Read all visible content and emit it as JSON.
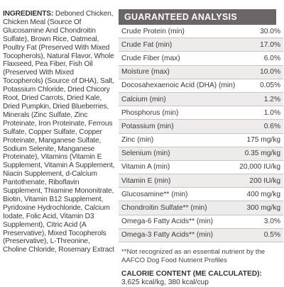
{
  "ingredients": {
    "title": "INGREDIENTS:",
    "text": "Deboned Chicken, Chicken Meal (Source Of Glucosamine And Chondroitin Sulfate), Brown Rice, Oatmeal, Poultry Fat (Preserved With Mixed Tocopherols), Natural Flavor, Whole Flaxseed, Pea Fiber, Fish Oil (Preserved With Mixed Tocopherols) (Source of DHA), Salt, Potassium Chloride, Dried Chicory Root, Dried Carrots, Dried Kale, Dried Pumpkin, Dried Blueberries, Minerals (Zinc Sulfate, Zinc Proteinate, Iron Proteinate, Ferrous Sulfate, Copper Sulfate, Copper Proteinate, Manganese Sulfate, Sodium Selenite, Manganese Proteinate), Vitamins (Vitamin E Supplement, Vitamin A Supplement, Niacin Supplement, d-Calcium Pantothenate, Riboflavin Supplement, Thiamine Mononitrate, Biotin, Vitamin B12 Supplement, Pyridoxine Hydrochloride, Calcium Iodate, Folic Acid, Vitamin D3 Supplement), Citric Acid (A Preservative), Mixed Tocopherols (Preservative), L-Threonine, Choline Chloride, Rosemary Extract"
  },
  "analysis": {
    "title": "GUARANTEED ANALYSIS",
    "rows": [
      {
        "label": "Crude Protein (min)",
        "value": "30.0%"
      },
      {
        "label": "Crude Fat (min)",
        "value": "17.0%"
      },
      {
        "label": "Crude Fiber (max)",
        "value": "6.0%"
      },
      {
        "label": "Moisture (max)",
        "value": "10.0%"
      },
      {
        "label": "Docosahexaenoic Acid (DHA) (min)",
        "value": "0.05%"
      },
      {
        "label": "Calcium (min)",
        "value": "1.2%"
      },
      {
        "label": "Phosphorus (min)",
        "value": "1.0%"
      },
      {
        "label": "Potassium (min)",
        "value": "0.6%"
      },
      {
        "label": "Zinc (min)",
        "value": "175 mg/kg"
      },
      {
        "label": "Selenium (min)",
        "value": "0.35 mg/kg"
      },
      {
        "label": "Vitamin A (min)",
        "value": "20,000 IU/kg"
      },
      {
        "label": "Vitamin E (min)",
        "value": "200 IU/kg"
      },
      {
        "label": "Glucosamine** (min)",
        "value": "400 mg/kg"
      },
      {
        "label": "Chondroitin Sulfate** (min)",
        "value": "300 mg/kg"
      },
      {
        "label": "Omega-6 Fatty Acids** (min)",
        "value": "3.0%"
      },
      {
        "label": "Omega-3 Fatty Acids** (min)",
        "value": "0.5%"
      }
    ],
    "footnote": "**Not recognized as an essential nutrient by the AAFCO Dog Food Nutrient Profiles"
  },
  "calorie": {
    "title": "CALORIE CONTENT (ME CALCULATED):",
    "value": "3,625 kcal/kg, 380 kcal/cup"
  },
  "colors": {
    "header_bg": "#6c6567",
    "row_alt": "#eeebeb",
    "rule": "#c9c3c4"
  }
}
